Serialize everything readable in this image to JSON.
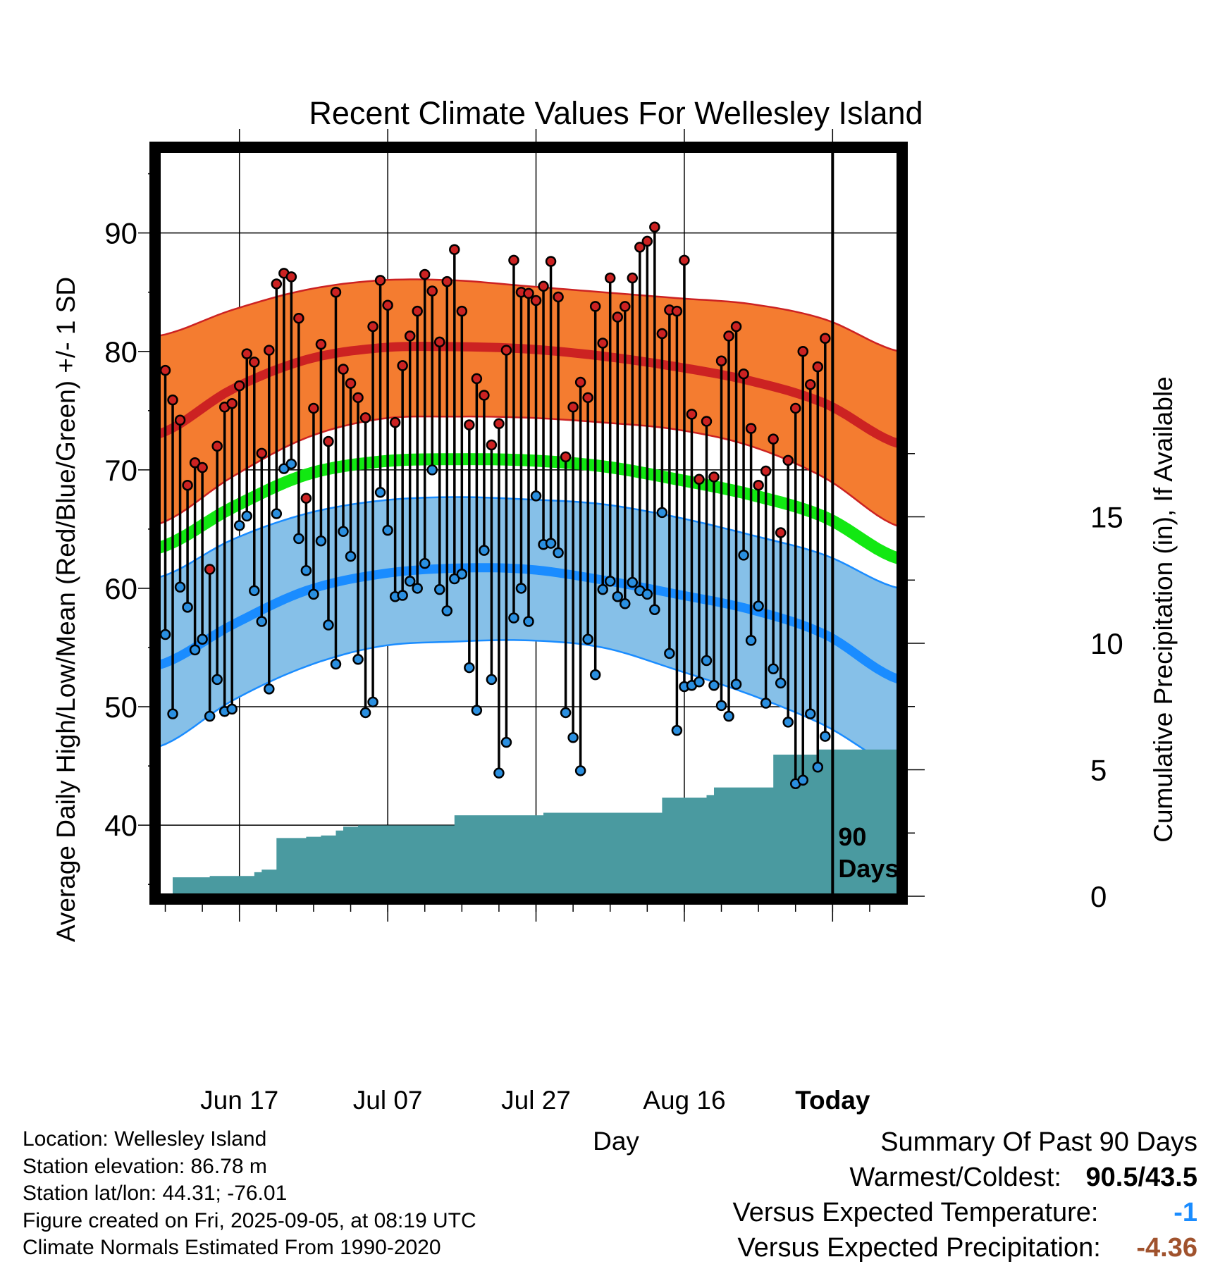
{
  "chart_data": {
    "type": "line",
    "title": "Recent Climate Values For Wellesley Island",
    "xlabel": "Day",
    "ylabel": "Average Daily High/Low/Mean (Red/Blue/Green) +/- 1 SD",
    "y2label": "Cumulative Precipitation (in), If Available",
    "x_tick_labels": [
      "Jun 17",
      "Jul 07",
      "Jul 27",
      "Aug 16",
      "Today"
    ],
    "x_tick_days": [
      6,
      26,
      46,
      66,
      86
    ],
    "x_range_days": [
      -5,
      95
    ],
    "ylim": [
      34,
      97
    ],
    "y_ticks": [
      40,
      50,
      60,
      70,
      80,
      90
    ],
    "y2lim": [
      0,
      29.5
    ],
    "y2_ticks": [
      0,
      5,
      10,
      15
    ],
    "today_label": "90 Days",
    "normals": {
      "days": [
        -5,
        5,
        15,
        25,
        35,
        45,
        55,
        65,
        75,
        85,
        95
      ],
      "high_mean": [
        73.0,
        76.8,
        79.3,
        80.3,
        80.4,
        80.2,
        79.6,
        78.7,
        77.5,
        75.6,
        72.2
      ],
      "high_sd_upper": [
        81.3,
        83.5,
        85.2,
        86.0,
        86.0,
        85.5,
        85.0,
        84.5,
        84.0,
        82.7,
        80.0
      ],
      "high_sd_lower": [
        65.4,
        69.4,
        72.7,
        74.3,
        74.5,
        74.4,
        74.0,
        73.4,
        72.0,
        69.3,
        65.2
      ],
      "mean": [
        63.4,
        66.8,
        69.6,
        70.7,
        70.9,
        70.8,
        70.3,
        69.2,
        67.9,
        66.0,
        62.5
      ],
      "low_mean": [
        53.5,
        56.9,
        59.8,
        61.2,
        61.7,
        61.6,
        60.7,
        59.5,
        58.2,
        56.1,
        52.3
      ],
      "low_sd_upper": [
        60.9,
        64.1,
        66.3,
        67.4,
        67.7,
        67.5,
        67.1,
        66.0,
        64.5,
        62.8,
        60.0
      ],
      "low_sd_lower": [
        46.6,
        50.5,
        53.4,
        55.1,
        55.5,
        55.6,
        55.0,
        53.1,
        51.0,
        48.4,
        44.9
      ]
    },
    "series": [
      {
        "name": "High",
        "values": [
          78.4,
          75.9,
          74.2,
          68.7,
          70.6,
          70.2,
          61.6,
          72.0,
          75.3,
          75.6,
          77.1,
          79.8,
          79.1,
          71.4,
          80.1,
          85.7,
          86.6,
          86.3,
          82.8,
          67.6,
          75.2,
          80.6,
          72.4,
          85.0,
          78.5,
          77.3,
          76.1,
          74.4,
          82.1,
          86.0,
          83.9,
          74.0,
          78.8,
          81.3,
          83.4,
          86.5,
          85.1,
          80.8,
          85.9,
          88.6,
          83.4,
          73.8,
          77.7,
          76.3,
          72.1,
          73.9,
          80.1,
          87.7,
          85.0,
          84.9,
          84.3,
          85.5,
          87.6,
          84.6,
          71.1,
          75.3,
          77.4,
          76.1,
          83.8,
          80.7,
          86.2,
          82.9,
          83.8,
          86.2,
          88.8,
          89.3,
          90.5,
          81.5,
          83.5,
          83.4,
          87.7,
          74.7,
          69.2,
          74.1,
          69.4,
          79.2,
          81.3,
          82.1,
          78.1,
          73.5,
          68.7,
          69.9,
          72.6,
          64.7,
          70.8,
          75.2,
          80.0,
          77.2,
          78.7,
          81.1
        ]
      },
      {
        "name": "Low",
        "values": [
          56.1,
          49.4,
          60.1,
          58.4,
          54.8,
          55.7,
          49.2,
          52.3,
          49.6,
          49.8,
          65.3,
          66.1,
          59.8,
          57.2,
          51.5,
          66.3,
          70.1,
          70.5,
          64.2,
          61.5,
          59.5,
          64.0,
          56.9,
          53.6,
          64.8,
          62.7,
          54.0,
          49.5,
          50.4,
          68.1,
          64.9,
          59.3,
          59.4,
          60.6,
          60.0,
          62.1,
          70.0,
          59.9,
          58.1,
          60.8,
          61.2,
          53.3,
          49.7,
          63.2,
          52.3,
          44.4,
          47.0,
          57.5,
          60.0,
          57.2,
          67.8,
          63.7,
          63.8,
          63.0,
          49.5,
          47.4,
          44.6,
          55.7,
          52.7,
          59.9,
          60.6,
          59.3,
          58.7,
          60.5,
          59.8,
          59.5,
          58.2,
          66.4,
          54.5,
          48.0,
          51.7,
          51.8,
          52.1,
          53.9,
          51.8,
          50.1,
          49.2,
          51.9,
          62.8,
          55.6,
          58.5,
          50.3,
          53.2,
          52.0,
          48.7,
          43.5,
          43.8,
          49.4,
          44.9,
          47.5
        ]
      },
      {
        "name": "Precipitation",
        "values": [
          0,
          0,
          0.75,
          0.75,
          0.75,
          0.75,
          0.75,
          0.8,
          0.8,
          0.8,
          0.8,
          0.8,
          0.8,
          0.95,
          1.05,
          1.05,
          2.3,
          2.3,
          2.3,
          2.3,
          2.35,
          2.35,
          2.4,
          2.4,
          2.6,
          2.75,
          2.75,
          2.8,
          2.8,
          2.8,
          2.8,
          2.8,
          2.8,
          2.8,
          2.8,
          2.8,
          2.8,
          2.8,
          2.8,
          2.8,
          3.2,
          3.2,
          3.2,
          3.2,
          3.2,
          3.2,
          3.2,
          3.2,
          3.2,
          3.2,
          3.2,
          3.2,
          3.3,
          3.3,
          3.3,
          3.3,
          3.3,
          3.3,
          3.3,
          3.3,
          3.3,
          3.3,
          3.3,
          3.3,
          3.3,
          3.3,
          3.3,
          3.3,
          3.9,
          3.9,
          3.9,
          3.9,
          3.9,
          3.9,
          4.0,
          4.3,
          4.3,
          4.3,
          4.3,
          4.3,
          4.3,
          4.3,
          4.3,
          5.6,
          5.6,
          5.6,
          5.6,
          5.6,
          5.6,
          5.8,
          5.8,
          5.8,
          5.8,
          5.8,
          5.8,
          5.8,
          5.8,
          5.8,
          5.8,
          5.8
        ]
      }
    ],
    "colors": {
      "high_band": "#f47c30",
      "high_line": "#cc2222",
      "mean_line": "#12e812",
      "low_band": "#86c0e8",
      "low_line": "#1a8cff",
      "precip": "#4a9aa0",
      "high_dot": "#cc2222",
      "low_dot": "#2a8fe0"
    }
  },
  "info": {
    "location": "Location: Wellesley Island",
    "elevation": "Station elevation: 86.78 m",
    "latlon": "Station lat/lon: 44.31; -76.01",
    "created": "Figure created on Fri, 2025-09-05, at 08:19 UTC",
    "normals": "Climate Normals Estimated From 1990-2020"
  },
  "summary": {
    "title": "Summary Of Past 90 Days",
    "warm_cold_label": "Warmest/Coldest:",
    "warm_cold_value": "90.5/43.5",
    "temp_label": "Versus Expected Temperature:",
    "temp_value": "-1",
    "temp_color": "#1a8cff",
    "precip_label": "Versus Expected Precipitation:",
    "precip_value": "-4.36",
    "precip_color": "#a0522d"
  }
}
